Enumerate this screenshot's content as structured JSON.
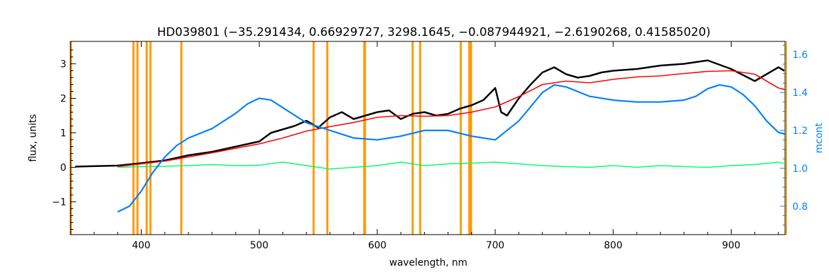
{
  "chart_data": {
    "type": "line",
    "title": "HD039801    (−35.291434, 0.66929727, 3298.1645, −0.087944921, −2.6190268, 0.41585020)",
    "xlabel": "wavelength, nm",
    "ylabel": "flux, units",
    "ylabel_right": "mcont",
    "xlim": [
      340,
      946
    ],
    "ylim": [
      -1.95,
      3.65
    ],
    "ylim_right": [
      0.65,
      1.67
    ],
    "xticks": [
      400,
      500,
      600,
      700,
      800,
      900
    ],
    "yticks": [
      -1,
      0,
      1,
      2,
      3
    ],
    "yticks_right": [
      0.8,
      1.0,
      1.2,
      1.4,
      1.6
    ],
    "grid": false,
    "colors": {
      "observed": "#000000",
      "model": "#ff0000",
      "residual": "#00ff66",
      "continuum": "#0080ff",
      "lines": "#ff9900",
      "right_axis": "#0080ff"
    },
    "vertical_lines_nm": [
      393.4,
      396.8,
      404.6,
      407.8,
      434.0,
      546.1,
      557.7,
      589.0,
      589.6,
      630.0,
      636.4,
      670.8,
      678.0,
      679.5
    ],
    "series": [
      {
        "key": "observed",
        "axis": "left",
        "x": [
          344,
          380,
          400,
          420,
          440,
          460,
          480,
          500,
          510,
          520,
          530,
          540,
          550,
          560,
          570,
          580,
          590,
          600,
          610,
          620,
          630,
          640,
          650,
          660,
          670,
          680,
          690,
          700,
          705,
          710,
          720,
          730,
          740,
          750,
          760,
          770,
          780,
          790,
          800,
          820,
          840,
          860,
          880,
          900,
          920,
          940,
          945
        ],
        "y": [
          0.02,
          0.05,
          0.12,
          0.2,
          0.35,
          0.45,
          0.6,
          0.75,
          1.0,
          1.1,
          1.2,
          1.35,
          1.15,
          1.45,
          1.6,
          1.4,
          1.5,
          1.6,
          1.65,
          1.4,
          1.55,
          1.6,
          1.5,
          1.55,
          1.7,
          1.8,
          1.95,
          2.3,
          1.6,
          1.5,
          2.0,
          2.4,
          2.75,
          2.9,
          2.7,
          2.6,
          2.65,
          2.75,
          2.8,
          2.85,
          2.95,
          3.0,
          3.1,
          2.85,
          2.5,
          2.9,
          2.8
        ]
      },
      {
        "key": "model",
        "axis": "left",
        "x": [
          380,
          400,
          420,
          440,
          460,
          480,
          500,
          520,
          540,
          560,
          580,
          600,
          620,
          640,
          660,
          680,
          700,
          720,
          740,
          760,
          780,
          800,
          820,
          840,
          860,
          880,
          900,
          920,
          940,
          946
        ],
        "y": [
          0.02,
          0.1,
          0.18,
          0.3,
          0.42,
          0.55,
          0.68,
          0.85,
          1.05,
          1.18,
          1.3,
          1.45,
          1.5,
          1.48,
          1.5,
          1.6,
          1.75,
          2.05,
          2.4,
          2.5,
          2.45,
          2.55,
          2.62,
          2.65,
          2.72,
          2.78,
          2.8,
          2.7,
          2.3,
          2.25
        ]
      },
      {
        "key": "residual",
        "axis": "left",
        "x": [
          380,
          400,
          420,
          440,
          460,
          480,
          500,
          520,
          540,
          560,
          580,
          600,
          620,
          640,
          660,
          680,
          700,
          720,
          740,
          760,
          780,
          800,
          820,
          840,
          860,
          880,
          900,
          920,
          940,
          946
        ],
        "y": [
          0.0,
          0.02,
          0.03,
          0.05,
          0.08,
          0.05,
          0.06,
          0.15,
          0.05,
          -0.05,
          0.0,
          0.05,
          0.15,
          0.05,
          0.1,
          0.12,
          0.15,
          0.1,
          0.05,
          0.02,
          0.0,
          0.05,
          0.0,
          0.05,
          0.02,
          0.0,
          0.05,
          0.08,
          0.15,
          0.1
        ]
      },
      {
        "key": "continuum",
        "axis": "right",
        "x": [
          380,
          390,
          400,
          410,
          420,
          430,
          440,
          460,
          480,
          490,
          500,
          510,
          520,
          540,
          560,
          580,
          600,
          620,
          640,
          660,
          680,
          700,
          720,
          740,
          750,
          760,
          780,
          800,
          820,
          840,
          860,
          870,
          880,
          890,
          900,
          910,
          920,
          930,
          940,
          946
        ],
        "y": [
          0.77,
          0.8,
          0.88,
          0.98,
          1.06,
          1.12,
          1.16,
          1.21,
          1.29,
          1.34,
          1.37,
          1.36,
          1.32,
          1.24,
          1.2,
          1.16,
          1.15,
          1.17,
          1.2,
          1.2,
          1.17,
          1.15,
          1.25,
          1.4,
          1.44,
          1.43,
          1.38,
          1.36,
          1.35,
          1.35,
          1.36,
          1.38,
          1.42,
          1.44,
          1.43,
          1.39,
          1.33,
          1.25,
          1.19,
          1.18
        ]
      }
    ]
  }
}
